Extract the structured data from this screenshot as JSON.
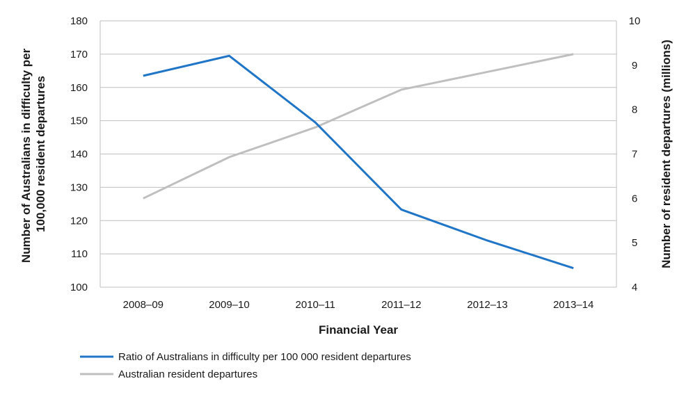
{
  "chart_data": {
    "type": "line",
    "categories": [
      "2008–09",
      "2009–10",
      "2010–11",
      "2011–12",
      "2012–13",
      "2013–14"
    ],
    "xlabel": "Financial Year",
    "ylabel_left": "Number of Australians in difficulty per 100,000 resident departures",
    "ylabel_left_lines": [
      "Number of Australians in difficulty per",
      "100,000 resident departures"
    ],
    "ylabel_right": "Number of resident departures (millions)",
    "ylim_left": [
      100,
      180
    ],
    "yticks_left": [
      100,
      110,
      120,
      130,
      140,
      150,
      160,
      170,
      180
    ],
    "ylim_right": [
      4,
      10
    ],
    "yticks_right": [
      4,
      5,
      6,
      7,
      8,
      9,
      10
    ],
    "grid": true,
    "legend_position": "bottom-left",
    "series": [
      {
        "name": "Ratio of Australians in difficulty per 100 000 resident departures",
        "axis": "left",
        "color": "#2075c7",
        "values": [
          163.5,
          169.5,
          149.5,
          123.3,
          114,
          105.7
        ]
      },
      {
        "name": "Australian resident departures",
        "axis": "right",
        "color": "#bfbfbf",
        "values": [
          6.0,
          6.93,
          7.6,
          8.45,
          8.85,
          9.25
        ]
      }
    ]
  }
}
